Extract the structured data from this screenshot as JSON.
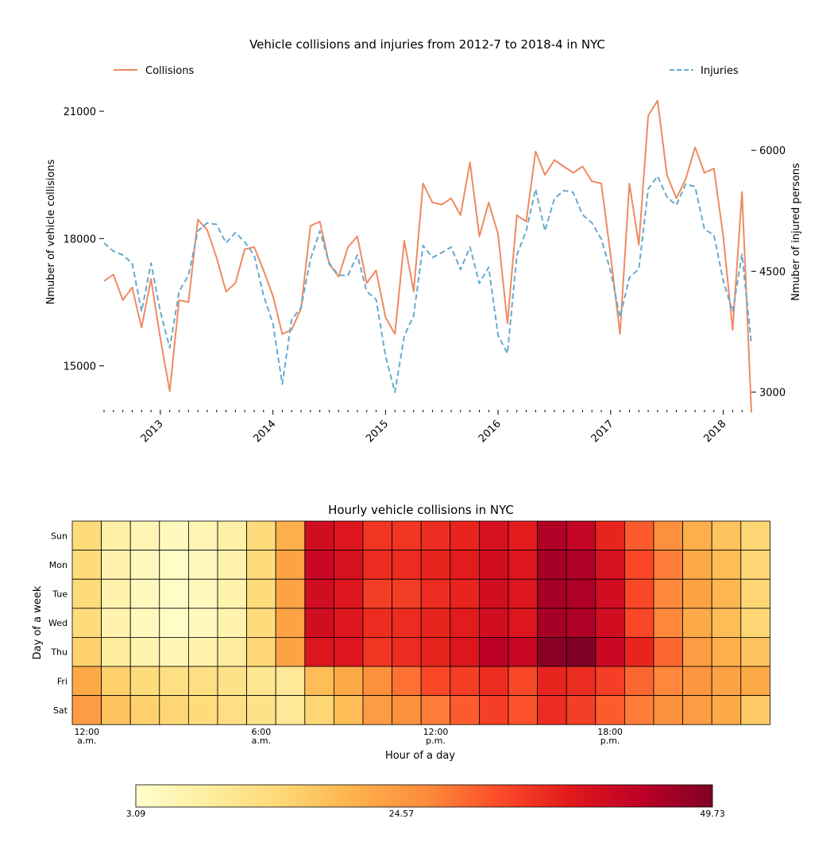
{
  "chart_data": [
    {
      "type": "line",
      "title": "Vehicle collisions and injuries from 2012-7 to 2018-4 in NYC",
      "ylabel": "Nmuber of vehicle collisions",
      "y2label": "Nmuber of injured persons",
      "ylim": [
        14000,
        21600
      ],
      "y2lim": [
        2800,
        6800
      ],
      "yticks": [
        15000,
        18000,
        21000
      ],
      "y2ticks": [
        3000,
        4500,
        6000
      ],
      "xtick_labels": [
        "2013",
        "2014",
        "2015",
        "2016",
        "2017",
        "2018"
      ],
      "grid": false,
      "legend": [
        {
          "name": "Collisions",
          "placement": "top-left"
        },
        {
          "name": "Injuries",
          "placement": "top-right"
        }
      ],
      "start_month": "2012-07",
      "series": [
        {
          "name": "Collisions",
          "axis": "left",
          "color": "#ef8a62",
          "dash": "solid",
          "values": [
            17000,
            17150,
            16550,
            16850,
            15900,
            17050,
            15650,
            14400,
            16550,
            16500,
            18450,
            18200,
            17550,
            16750,
            16950,
            17750,
            17800,
            17250,
            16650,
            15750,
            15850,
            16350,
            18300,
            18400,
            17400,
            17100,
            17800,
            18050,
            16950,
            17250,
            16150,
            15750,
            17950,
            16750,
            19300,
            18850,
            18800,
            18950,
            18550,
            19800,
            18050,
            18850,
            18100,
            16000,
            18550,
            18400,
            20050,
            19500,
            19850,
            19700,
            19550,
            19700,
            19350,
            19300,
            17600,
            15750,
            19300,
            17850,
            20900,
            21250,
            19500,
            18950,
            19400,
            20150,
            19550,
            19650,
            18050,
            15850,
            19100,
            13900
          ]
        },
        {
          "name": "Injuries",
          "axis": "right",
          "color": "#67a9cf",
          "dash": "dashed",
          "values": [
            4850,
            4750,
            4700,
            4600,
            4000,
            4600,
            4000,
            3550,
            4250,
            4450,
            5000,
            5100,
            5080,
            4850,
            4980,
            4860,
            4700,
            4200,
            3850,
            3100,
            3900,
            4050,
            4650,
            5000,
            4600,
            4450,
            4450,
            4700,
            4250,
            4150,
            3450,
            3000,
            3700,
            3950,
            4820,
            4670,
            4730,
            4800,
            4520,
            4800,
            4350,
            4550,
            3700,
            3480,
            4700,
            5000,
            5520,
            5000,
            5400,
            5500,
            5480,
            5200,
            5100,
            4900,
            4500,
            3930,
            4420,
            4530,
            5520,
            5680,
            5420,
            5320,
            5580,
            5550,
            5020,
            4950,
            4380,
            4000,
            4710,
            3600
          ]
        }
      ]
    },
    {
      "type": "heatmap",
      "title": "Hourly vehicle collisions in NYC",
      "xlabel": "Hour of a day",
      "ylabel": "Day of a week",
      "rows": [
        "Sun",
        "Mon",
        "Tue",
        "Wed",
        "Thu",
        "Fri",
        "Sat"
      ],
      "xtick_labels": [
        {
          "col": 0,
          "line1": "12:00",
          "line2": "a.m."
        },
        {
          "col": 6,
          "line1": "6:00",
          "line2": "a.m."
        },
        {
          "col": 12,
          "line1": "12:00",
          "line2": "p.m."
        },
        {
          "col": 18,
          "line1": "18:00",
          "line2": "p.m."
        }
      ],
      "colormap": "YlOrRd",
      "vmin": 3.09,
      "vmax": 49.73,
      "colorbar_ticks": [
        "3.09",
        "24.57",
        "49.73"
      ],
      "values": [
        [
          14,
          8,
          6,
          5,
          6,
          8,
          14,
          21,
          41,
          39,
          35,
          35,
          36,
          37,
          40,
          38,
          45,
          43,
          37,
          31,
          26,
          21,
          18,
          15
        ],
        [
          14,
          7,
          5,
          4,
          5,
          7,
          14,
          23,
          42,
          40,
          36,
          36,
          37,
          38,
          41,
          39,
          46,
          45,
          40,
          33,
          28,
          22,
          19,
          15
        ],
        [
          14,
          7,
          5,
          4,
          5,
          7,
          14,
          23,
          41,
          39,
          34,
          34,
          36,
          37,
          41,
          39,
          46,
          45,
          41,
          33,
          27,
          23,
          20,
          15
        ],
        [
          14,
          7,
          5,
          4,
          5,
          7,
          14,
          23,
          41,
          39,
          36,
          36,
          37,
          38,
          41,
          39,
          46,
          45,
          41,
          33,
          27,
          22,
          19,
          15
        ],
        [
          16,
          9,
          7,
          6,
          7,
          9,
          15,
          23,
          39,
          39,
          35,
          36,
          37,
          39,
          44,
          42,
          49,
          49.73,
          42,
          37,
          30,
          24,
          21,
          18
        ],
        [
          22,
          16,
          14,
          13,
          13,
          12,
          11,
          10,
          19,
          22,
          26,
          29,
          33,
          34,
          36,
          33,
          37,
          36,
          34,
          30,
          27,
          25,
          23,
          22
        ],
        [
          24,
          18,
          16,
          15,
          14,
          13,
          12,
          10,
          15,
          19,
          24,
          26,
          28,
          31,
          34,
          32,
          36,
          34,
          31,
          28,
          26,
          24,
          22,
          17
        ]
      ]
    }
  ]
}
